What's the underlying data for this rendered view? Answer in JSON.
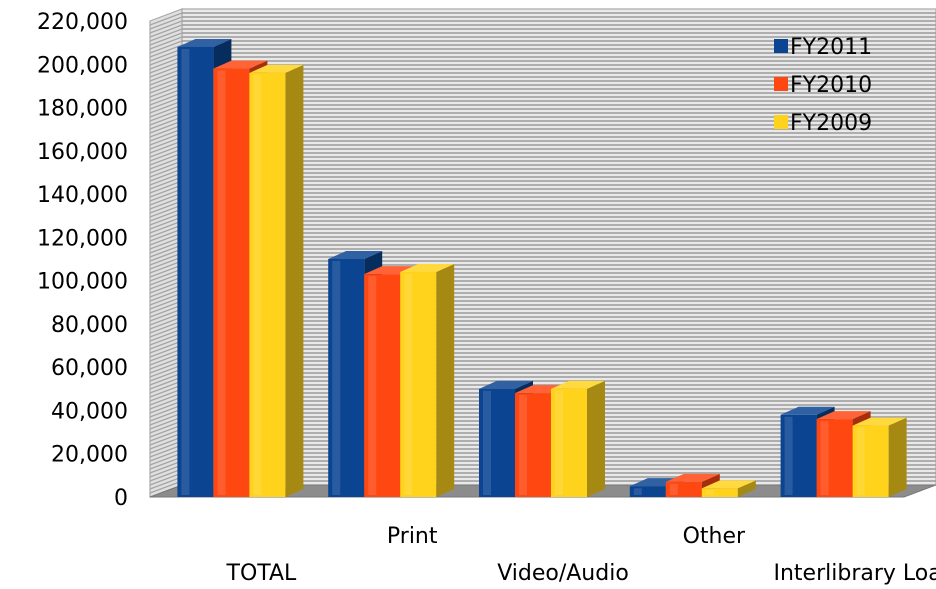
{
  "chart_data": {
    "type": "bar",
    "style": "3d-clustered-column",
    "categories": [
      "TOTAL",
      "Print",
      "Video/Audio",
      "Other",
      "Interlibrary Loan"
    ],
    "series": [
      {
        "name": "FY2011",
        "color": "#0b4592",
        "values": [
          208000,
          110000,
          50000,
          5000,
          38000
        ]
      },
      {
        "name": "FY2010",
        "color": "#ff4712",
        "values": [
          198000,
          103000,
          48000,
          7000,
          36000
        ]
      },
      {
        "name": "FY2009",
        "color": "#ffd21b",
        "values": [
          196000,
          104000,
          50000,
          4000,
          33000
        ]
      }
    ],
    "yticks": [
      "0",
      "20,000",
      "40,000",
      "60,000",
      "80,000",
      "100,000",
      "120,000",
      "140,000",
      "160,000",
      "180,000",
      "200,000",
      "220,000"
    ],
    "ylim": [
      0,
      220000
    ],
    "grid": "horizontal lines",
    "legend_position": "top-right"
  }
}
